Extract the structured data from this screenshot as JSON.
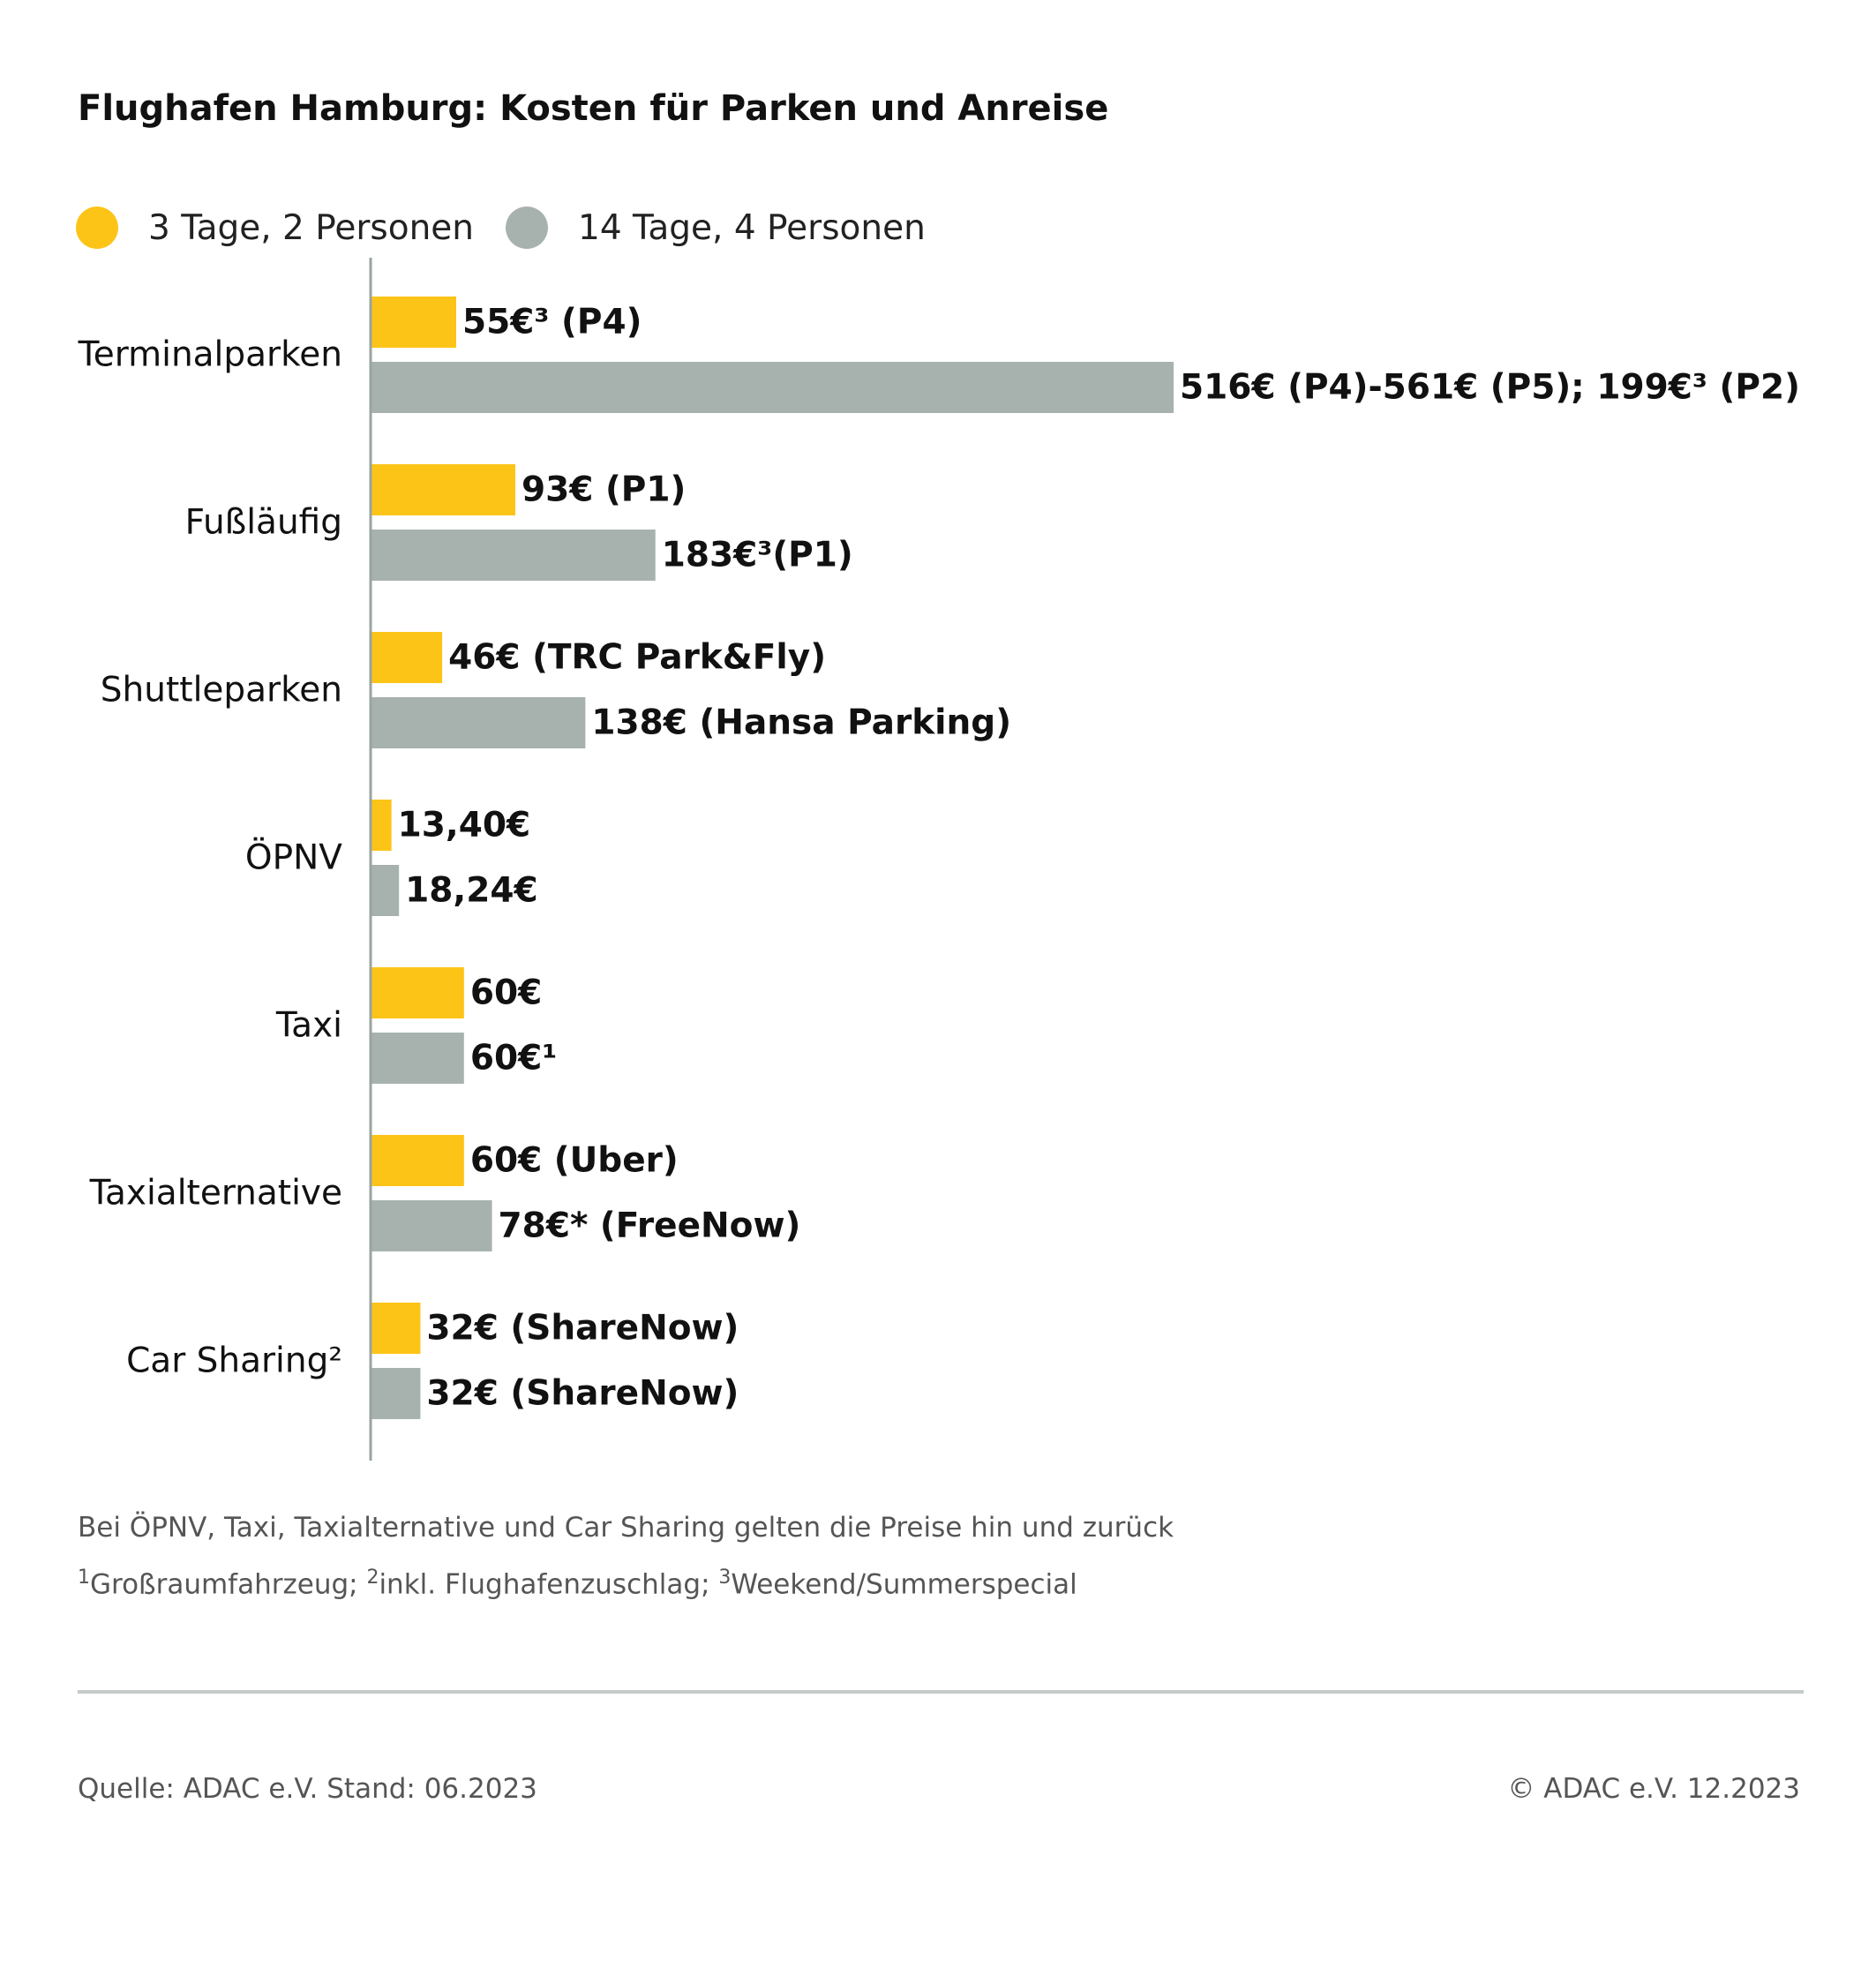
{
  "chart_data": {
    "type": "bar",
    "orientation": "horizontal",
    "title": "Flughafen Hamburg: Kosten für Parken und Anreise",
    "xlabel": "",
    "ylabel": "",
    "xlim": [
      0,
      530
    ],
    "grid": false,
    "legend_position": "top-left",
    "categories": [
      "Terminalparken",
      "Fußläufig",
      "Shuttleparken",
      "ÖPNV",
      "Taxi",
      "Taxialternative",
      "Car Sharing²"
    ],
    "series": [
      {
        "name": "3 Tage, 2 Personen",
        "color": "#FDC418",
        "values": [
          55,
          93,
          46,
          13.4,
          60,
          60,
          32
        ],
        "labels": [
          "55€³ (P4)",
          "93€ (P1)",
          "46€ (TRC Park&Fly)",
          "13,40€",
          "60€",
          "60€ (Uber)",
          "32€ (ShareNow)"
        ]
      },
      {
        "name": "14 Tage, 4 Personen",
        "color": "#A7B2AE",
        "values": [
          516,
          183,
          138,
          18.24,
          60,
          78,
          32
        ],
        "labels": [
          "516€ (P4)-561€ (P5); 199€³ (P2)",
          "183€³(P1)",
          "138€ (Hansa Parking)",
          "18,24€",
          "60€¹",
          "78€* (FreeNow)",
          "32€ (ShareNow)"
        ]
      }
    ]
  },
  "notes": {
    "line1": "Bei ÖPNV, Taxi, Taxialternative und Car Sharing gelten die Preise hin und zurück",
    "fn1_num": "1",
    "fn1_text": "Großraumfahrzeug; ",
    "fn2_num": "2",
    "fn2_text": "inkl. Flughafenzuschlag; ",
    "fn3_num": "3",
    "fn3_text": "Weekend/Summerspecial"
  },
  "footer": {
    "source": "Quelle: ADAC e.V. Stand: 06.2023",
    "copyright": "© ADAC e.V. 12.2023"
  },
  "colors": {
    "axis": "#9aa3a0",
    "rule": "#c5cbc8"
  }
}
